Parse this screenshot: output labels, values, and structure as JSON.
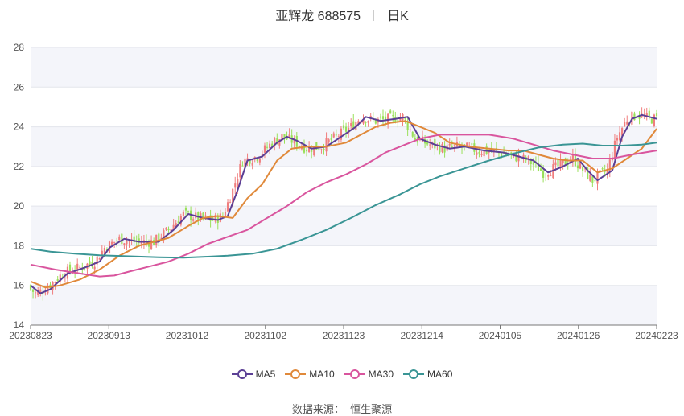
{
  "header": {
    "stock": "亚辉龙 688575",
    "period": "日K"
  },
  "source": {
    "label": "数据来源：",
    "value": "恒生聚源"
  },
  "chart_data": {
    "type": "candlestick",
    "ylim": [
      14,
      28
    ],
    "yticks": [
      "14",
      "16",
      "18",
      "20",
      "22",
      "24",
      "26",
      "28"
    ],
    "xticks": [
      "20230823",
      "20230913",
      "20231012",
      "20231102",
      "20231123",
      "20231214",
      "20240105",
      "20240126",
      "20240223"
    ],
    "up_color": "#f07e7e",
    "down_color": "#9ae05a",
    "grid": true,
    "legend_position": "bottom",
    "series": [
      {
        "name": "MA5",
        "color": "#5b3f95",
        "points": [
          [
            0,
            16.0
          ],
          [
            4,
            15.6
          ],
          [
            8,
            15.8
          ],
          [
            15,
            16.6
          ],
          [
            22,
            16.9
          ],
          [
            28,
            17.2
          ],
          [
            32,
            17.9
          ],
          [
            38,
            18.35
          ],
          [
            44,
            18.2
          ],
          [
            52,
            18.2
          ],
          [
            58,
            18.8
          ],
          [
            64,
            19.6
          ],
          [
            70,
            19.4
          ],
          [
            76,
            19.3
          ],
          [
            80,
            19.5
          ],
          [
            84,
            20.8
          ],
          [
            88,
            22.3
          ],
          [
            94,
            22.5
          ],
          [
            100,
            23.2
          ],
          [
            104,
            23.5
          ],
          [
            108,
            23.3
          ],
          [
            114,
            22.9
          ],
          [
            120,
            23.0
          ],
          [
            126,
            23.5
          ],
          [
            132,
            24.0
          ],
          [
            136,
            24.5
          ],
          [
            142,
            24.3
          ],
          [
            148,
            24.4
          ],
          [
            153,
            24.5
          ],
          [
            158,
            23.4
          ],
          [
            164,
            23.1
          ],
          [
            170,
            22.9
          ],
          [
            176,
            23.0
          ],
          [
            184,
            22.8
          ],
          [
            192,
            22.7
          ],
          [
            198,
            22.5
          ],
          [
            204,
            22.3
          ],
          [
            210,
            21.7
          ],
          [
            216,
            22.0
          ],
          [
            222,
            22.4
          ],
          [
            226,
            21.8
          ],
          [
            230,
            21.3
          ],
          [
            236,
            21.8
          ],
          [
            240,
            23.5
          ],
          [
            244,
            24.4
          ],
          [
            248,
            24.6
          ],
          [
            254,
            24.4
          ]
        ]
      },
      {
        "name": "MA10",
        "color": "#e0893a",
        "points": [
          [
            0,
            16.2
          ],
          [
            6,
            15.9
          ],
          [
            12,
            16.0
          ],
          [
            20,
            16.3
          ],
          [
            28,
            16.8
          ],
          [
            36,
            17.5
          ],
          [
            44,
            18.0
          ],
          [
            50,
            18.2
          ],
          [
            56,
            18.4
          ],
          [
            64,
            19.0
          ],
          [
            70,
            19.4
          ],
          [
            76,
            19.5
          ],
          [
            82,
            19.4
          ],
          [
            88,
            20.4
          ],
          [
            94,
            21.1
          ],
          [
            100,
            22.3
          ],
          [
            106,
            22.9
          ],
          [
            112,
            23.0
          ],
          [
            120,
            23.0
          ],
          [
            128,
            23.2
          ],
          [
            134,
            23.6
          ],
          [
            140,
            24.0
          ],
          [
            146,
            24.2
          ],
          [
            152,
            24.3
          ],
          [
            158,
            24.0
          ],
          [
            164,
            23.7
          ],
          [
            170,
            23.2
          ],
          [
            178,
            23.0
          ],
          [
            186,
            22.9
          ],
          [
            194,
            22.8
          ],
          [
            200,
            22.8
          ],
          [
            206,
            22.6
          ],
          [
            212,
            22.4
          ],
          [
            218,
            22.3
          ],
          [
            224,
            22.3
          ],
          [
            230,
            21.7
          ],
          [
            236,
            21.9
          ],
          [
            242,
            22.4
          ],
          [
            248,
            22.9
          ],
          [
            254,
            23.9
          ]
        ]
      },
      {
        "name": "MA30",
        "color": "#d9559e",
        "points": [
          [
            0,
            17.05
          ],
          [
            10,
            16.8
          ],
          [
            20,
            16.6
          ],
          [
            28,
            16.45
          ],
          [
            34,
            16.5
          ],
          [
            40,
            16.7
          ],
          [
            48,
            16.95
          ],
          [
            56,
            17.2
          ],
          [
            64,
            17.6
          ],
          [
            72,
            18.1
          ],
          [
            80,
            18.45
          ],
          [
            88,
            18.8
          ],
          [
            96,
            19.4
          ],
          [
            104,
            20.0
          ],
          [
            112,
            20.7
          ],
          [
            120,
            21.2
          ],
          [
            128,
            21.6
          ],
          [
            136,
            22.1
          ],
          [
            144,
            22.7
          ],
          [
            152,
            23.1
          ],
          [
            158,
            23.4
          ],
          [
            166,
            23.6
          ],
          [
            176,
            23.6
          ],
          [
            186,
            23.6
          ],
          [
            196,
            23.4
          ],
          [
            204,
            23.1
          ],
          [
            212,
            22.8
          ],
          [
            220,
            22.6
          ],
          [
            228,
            22.4
          ],
          [
            236,
            22.4
          ],
          [
            244,
            22.6
          ],
          [
            254,
            22.8
          ]
        ]
      },
      {
        "name": "MA60",
        "color": "#3a9595",
        "points": [
          [
            0,
            17.85
          ],
          [
            8,
            17.7
          ],
          [
            18,
            17.6
          ],
          [
            28,
            17.52
          ],
          [
            40,
            17.47
          ],
          [
            52,
            17.42
          ],
          [
            62,
            17.4
          ],
          [
            72,
            17.45
          ],
          [
            80,
            17.5
          ],
          [
            90,
            17.6
          ],
          [
            100,
            17.85
          ],
          [
            110,
            18.3
          ],
          [
            120,
            18.8
          ],
          [
            130,
            19.4
          ],
          [
            140,
            20.05
          ],
          [
            150,
            20.6
          ],
          [
            158,
            21.1
          ],
          [
            166,
            21.5
          ],
          [
            176,
            21.9
          ],
          [
            186,
            22.3
          ],
          [
            196,
            22.65
          ],
          [
            206,
            22.95
          ],
          [
            216,
            23.1
          ],
          [
            224,
            23.15
          ],
          [
            232,
            23.05
          ],
          [
            240,
            23.05
          ],
          [
            248,
            23.1
          ],
          [
            254,
            23.2
          ]
        ]
      }
    ]
  }
}
